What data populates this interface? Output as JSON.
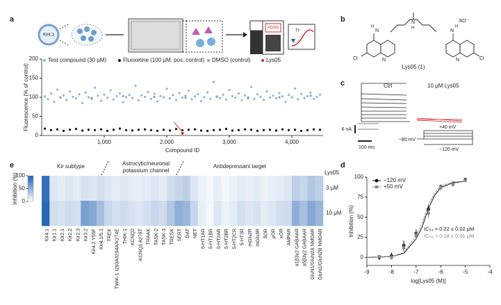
{
  "panels": [
    "a",
    "b",
    "c",
    "d",
    "e"
  ],
  "a": {
    "plasmid": "Kir4.1",
    "device": "FDSS",
    "ion": "Tl⁺"
  },
  "b": {
    "atoms": [
      "N",
      "H",
      "N",
      "H",
      "N",
      "H",
      "N",
      "N",
      "Cl",
      "Cl"
    ],
    "counterion": "3Cl⁻",
    "caption": "Lys05 (1)"
  },
  "c": {
    "ctrl": "Ctrl",
    "drug": "10 μM Lys05",
    "scale_current": "6 nA",
    "scale_time": "100 ms",
    "v_hold": "−80 mV",
    "v_high": "+40 mV",
    "v_low": "−120 mV"
  },
  "e_groups": {
    "kir": "Kir subtype",
    "astro": [
      "Astrocytic/neuronal",
      "potassium channel"
    ],
    "antidep": "Antidepressant target"
  },
  "chart_data": [
    {
      "type": "scatter",
      "xlabel": "Compound ID",
      "ylabel": "Fluorescence (% of control)",
      "xlim": [
        0,
        4500
      ],
      "xticks": [
        {
          "value": 1000,
          "label": "1,000"
        },
        {
          "value": 2000,
          "label": "2,000"
        },
        {
          "value": 3000,
          "label": "3,000"
        },
        {
          "value": 4000,
          "label": "4,000"
        }
      ],
      "ylim": [
        0,
        200
      ],
      "yticks": [
        0,
        50,
        100,
        150,
        200
      ],
      "series": [
        {
          "name": "Test compound (30 μM)",
          "color": "#8fb3e3",
          "x": [
            50,
            100,
            150,
            200,
            250,
            300,
            350,
            400,
            450,
            500,
            550,
            600,
            650,
            700,
            750,
            800,
            850,
            900,
            950,
            1000,
            1050,
            1100,
            1150,
            1200,
            1250,
            1300,
            1350,
            1400,
            1450,
            1500,
            1550,
            1600,
            1650,
            1700,
            1750,
            1800,
            1850,
            1900,
            1950,
            2000,
            2050,
            2100,
            2150,
            2200,
            2250,
            2300,
            2350,
            2400,
            2450,
            2500,
            2550,
            2600,
            2650,
            2700,
            2750,
            2800,
            2850,
            2900,
            2950,
            3000,
            3050,
            3100,
            3150,
            3200,
            3250,
            3300,
            3350,
            3400,
            3450,
            3500,
            3550,
            3600,
            3650,
            3700,
            3750,
            3800,
            3850,
            3900,
            3950,
            4000,
            4050,
            4100,
            4150,
            4200,
            4250,
            4300,
            4350,
            4400,
            4450
          ],
          "values": [
            102,
            95,
            110,
            88,
            120,
            99,
            105,
            93,
            115,
            101,
            97,
            108,
            85,
            112,
            100,
            96,
            125,
            104,
            91,
            107,
            99,
            118,
            94,
            103,
            110,
            87,
            100,
            106,
            98,
            130,
            92,
            105,
            101,
            114,
            96,
            109,
            89,
            103,
            100,
            122,
            97,
            106,
            93,
            111,
            99,
            104,
            117,
            95,
            102,
            108,
            90,
            100,
            113,
            96,
            140,
            101,
            98,
            107,
            94,
            119,
            103,
            99,
            110,
            92,
            105,
            100,
            127,
            96,
            108,
            101,
            93,
            115,
            99,
            104,
            97,
            111,
            102,
            88,
            106,
            100,
            123,
            95,
            109,
            98,
            103,
            112,
            96,
            101,
            107
          ]
        },
        {
          "name": "Fluoxetine (100 μM, pos. control)",
          "color": "#111111",
          "x": [
            50,
            150,
            250,
            350,
            450,
            550,
            650,
            750,
            850,
            950,
            1050,
            1150,
            1250,
            1350,
            1450,
            1550,
            1650,
            1750,
            1850,
            1950,
            2050,
            2150,
            2250,
            2350,
            2450,
            2550,
            2650,
            2750,
            2850,
            2950,
            3050,
            3150,
            3250,
            3350,
            3450,
            3550,
            3650,
            3750,
            3850,
            3950,
            4050,
            4150,
            4250,
            4350,
            4450
          ],
          "values": [
            18,
            14,
            16,
            12,
            15,
            17,
            13,
            15,
            14,
            16,
            12,
            15,
            18,
            14,
            13,
            15,
            16,
            14,
            12,
            15,
            13,
            17,
            14,
            15,
            16,
            13,
            12,
            14,
            15,
            17,
            13,
            14,
            16,
            15,
            12,
            14,
            15,
            13,
            16,
            14,
            15,
            12,
            14,
            16,
            15
          ]
        },
        {
          "name": "DMSO (control)",
          "color": "#9a9a9a",
          "x": [
            300,
            800,
            1300,
            1800,
            2300,
            2800,
            3300,
            3800,
            4300
          ],
          "values": [
            100,
            98,
            103,
            101,
            99,
            102,
            97,
            100,
            104
          ]
        },
        {
          "name": "Lys05",
          "color": "#d62728",
          "x": [
            2250
          ],
          "values": [
            6
          ]
        }
      ]
    },
    {
      "type": "heatmap",
      "header": "Lys05",
      "color_low": "#ffffff",
      "color_high": "#1f5fb0",
      "colorbar": {
        "label": "Inhibition (%)",
        "lim": [
          0,
          100
        ],
        "ticks": [
          0,
          50,
          100
        ]
      },
      "categories": [
        "Kir4.1",
        "Kir1.1",
        "Kir2.1",
        "Kir2.2",
        "Kir2.3",
        "Kir3.2",
        "Kir4.2 Y55F",
        "Kir4.1/5.1",
        "TREK",
        "TWIK-1 I293A/I294A/K274E",
        "THIK-1",
        "KCNQ2",
        "KCNQ3 A278T",
        "TRAAK",
        "TASK-2",
        "TASK-3",
        "TRESK",
        "SERT",
        "DAT",
        "NET",
        "5-HT1AR",
        "5-HT1BR",
        "5-HT2AR",
        "5-HT2BR",
        "5-HT2CR",
        "5-HT3R",
        "mGlu2R",
        "mGlu3R",
        "δOR",
        "μOR",
        "κOR",
        "AMPAR",
        "α1β3γ2 GABAAR",
        "α5β3γ2 GABAAR",
        "GluN1/GluN2A NMDAR",
        "GluN1/GluN2B NMDAR"
      ],
      "series": [
        {
          "name": "3 μM",
          "values": [
            90,
            15,
            12,
            15,
            12,
            18,
            15,
            20,
            15,
            12,
            15,
            12,
            10,
            12,
            15,
            12,
            20,
            25,
            30,
            15,
            8,
            5,
            10,
            5,
            8,
            12,
            10,
            12,
            8,
            10,
            12,
            15,
            30,
            25,
            35,
            30
          ]
        },
        {
          "name": "10 μM",
          "values": [
            95,
            20,
            18,
            22,
            20,
            60,
            55,
            40,
            25,
            20,
            22,
            18,
            15,
            20,
            25,
            22,
            35,
            50,
            45,
            25,
            10,
            5,
            15,
            8,
            12,
            20,
            15,
            18,
            12,
            15,
            20,
            22,
            50,
            40,
            55,
            45
          ]
        }
      ]
    },
    {
      "type": "dose_response",
      "xlabel": "log[Lys05 (M)]",
      "ylabel": "Inhibition (%)",
      "xlim": [
        -9,
        -4
      ],
      "xticks": [
        -9,
        -8,
        -7,
        -6,
        -5,
        -4
      ],
      "ylim": [
        -10,
        100
      ],
      "yticks": [
        0,
        25,
        50,
        75,
        100
      ],
      "series": [
        {
          "name": "−120 mV",
          "color": "#111111",
          "marker": "circle",
          "x": [
            -8.5,
            -8,
            -7.5,
            -7,
            -6.5,
            -6,
            -5.5,
            -5
          ],
          "values": [
            0,
            2,
            15,
            30,
            60,
            88,
            92,
            97
          ],
          "error": [
            3,
            4,
            6,
            5,
            5,
            3,
            3,
            2
          ],
          "fit_x": [
            -9,
            -8,
            -7.5,
            -7,
            -6.75,
            -6.5,
            -6.25,
            -6,
            -5.5,
            -5
          ],
          "fit": [
            0,
            1,
            5,
            23,
            38,
            61,
            77,
            87,
            93,
            95
          ]
        },
        {
          "name": "+50 mV",
          "color": "#888888",
          "marker": "square",
          "x": [
            -8.5,
            -8,
            -7.5,
            -7,
            -6.5,
            -6,
            -5.5,
            -5
          ],
          "values": [
            1,
            0,
            12,
            28,
            55,
            87,
            91,
            96
          ],
          "error": [
            2,
            3,
            5,
            5,
            6,
            4,
            3,
            2
          ],
          "fit_x": [
            -9,
            -8,
            -7.5,
            -7,
            -6.75,
            -6.5,
            -6.25,
            -6,
            -5.5,
            -5
          ],
          "fit": [
            0,
            1,
            6,
            27,
            43,
            66,
            80,
            89,
            94,
            95
          ]
        }
      ],
      "annotations": [
        "IC₅₀ = 0.22 ± 0.02 μM",
        "IC₅₀ = 0.18 ± 0.01 μM"
      ]
    }
  ]
}
